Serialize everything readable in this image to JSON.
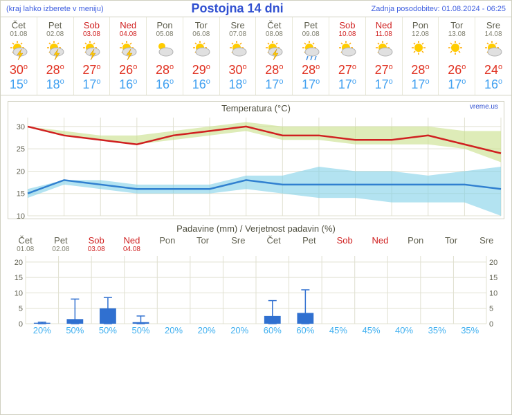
{
  "header": {
    "left": "(kraj lahko izberete v meniju)",
    "title": "Postojna 14 dni",
    "right": "Zadnja posodobitev: 01.08.2024 - 06:25"
  },
  "brand": "vreme.us",
  "days": [
    {
      "name": "Čet",
      "date": "01.08",
      "weekend": false,
      "icon": "storm",
      "high": 30,
      "low": 15
    },
    {
      "name": "Pet",
      "date": "02.08",
      "weekend": false,
      "icon": "storm",
      "high": 28,
      "low": 18
    },
    {
      "name": "Sob",
      "date": "03.08",
      "weekend": true,
      "icon": "storm",
      "high": 27,
      "low": 17
    },
    {
      "name": "Ned",
      "date": "04.08",
      "weekend": true,
      "icon": "storm",
      "high": 26,
      "low": 16
    },
    {
      "name": "Pon",
      "date": "05.08",
      "weekend": false,
      "icon": "cloudy",
      "high": 28,
      "low": 16
    },
    {
      "name": "Tor",
      "date": "06.08",
      "weekend": false,
      "icon": "partly",
      "high": 29,
      "low": 16
    },
    {
      "name": "Sre",
      "date": "07.08",
      "weekend": false,
      "icon": "partly",
      "high": 30,
      "low": 18
    },
    {
      "name": "Čet",
      "date": "08.08",
      "weekend": false,
      "icon": "storm",
      "high": 28,
      "low": 17
    },
    {
      "name": "Pet",
      "date": "09.08",
      "weekend": false,
      "icon": "rain",
      "high": 28,
      "low": 17
    },
    {
      "name": "Sob",
      "date": "10.08",
      "weekend": true,
      "icon": "partly",
      "high": 27,
      "low": 17
    },
    {
      "name": "Ned",
      "date": "11.08",
      "weekend": true,
      "icon": "partly",
      "high": 27,
      "low": 17
    },
    {
      "name": "Pon",
      "date": "12.08",
      "weekend": false,
      "icon": "sunny",
      "high": 28,
      "low": 17
    },
    {
      "name": "Tor",
      "date": "13.08",
      "weekend": false,
      "icon": "sunny",
      "high": 26,
      "low": 17
    },
    {
      "name": "Sre",
      "date": "14.08",
      "weekend": false,
      "icon": "partly",
      "high": 24,
      "low": 16
    }
  ],
  "temp_chart": {
    "title": "Temperatura (°C)",
    "ylim": [
      10,
      32
    ],
    "yticks": [
      10,
      15,
      20,
      25,
      30
    ],
    "grid_color": "#e0e0d0",
    "high_line_color": "#d02020",
    "high_band_color": "#c8e088",
    "low_line_color": "#3080d0",
    "low_band_color": "#80d0e8",
    "background": "#ffffff",
    "high_values": [
      30,
      28,
      27,
      26,
      28,
      29,
      30,
      28,
      28,
      27,
      27,
      28,
      26,
      24
    ],
    "high_upper": [
      30,
      29,
      28,
      28,
      29,
      30,
      31,
      30,
      30,
      30,
      30,
      30,
      29,
      29
    ],
    "high_lower": [
      30,
      28,
      27,
      26,
      27,
      28,
      29,
      27,
      27,
      26,
      26,
      26,
      25,
      22
    ],
    "low_values": [
      15,
      18,
      17,
      16,
      16,
      16,
      18,
      17,
      17,
      17,
      17,
      17,
      17,
      16
    ],
    "low_upper": [
      16,
      18,
      18,
      17,
      17,
      17,
      19,
      19,
      21,
      20,
      20,
      19,
      20,
      21
    ],
    "low_lower": [
      14,
      17,
      16,
      15,
      15,
      15,
      16,
      15,
      14,
      14,
      13,
      13,
      13,
      10
    ]
  },
  "precip_chart": {
    "title": "Padavine (mm) / Verjetnost padavin (%)",
    "ylim": [
      0,
      22
    ],
    "yticks": [
      0,
      5,
      10,
      15,
      20
    ],
    "grid_color": "#e0e0d0",
    "bar_color": "#3070d0",
    "error_color": "#3070d0",
    "prob_color": "#40b0f0",
    "days": [
      {
        "name": "Čet",
        "date": "01.08",
        "weekend": false,
        "mm": 0.3,
        "err": 0.5,
        "prob": 20
      },
      {
        "name": "Pet",
        "date": "02.08",
        "weekend": false,
        "mm": 1.5,
        "err": 8,
        "prob": 50
      },
      {
        "name": "Sob",
        "date": "03.08",
        "weekend": true,
        "mm": 5,
        "err": 8.5,
        "prob": 50
      },
      {
        "name": "Ned",
        "date": "04.08",
        "weekend": true,
        "mm": 0.5,
        "err": 2.5,
        "prob": 50
      },
      {
        "name": "Pon",
        "date": "",
        "weekend": false,
        "mm": 0,
        "err": 0,
        "prob": 20
      },
      {
        "name": "Tor",
        "date": "",
        "weekend": false,
        "mm": 0,
        "err": 0,
        "prob": 20
      },
      {
        "name": "Sre",
        "date": "",
        "weekend": false,
        "mm": 0,
        "err": 0,
        "prob": 20
      },
      {
        "name": "Čet",
        "date": "",
        "weekend": false,
        "mm": 2.5,
        "err": 7.5,
        "prob": 60
      },
      {
        "name": "Pet",
        "date": "",
        "weekend": false,
        "mm": 3.5,
        "err": 11,
        "prob": 60
      },
      {
        "name": "Sob",
        "date": "",
        "weekend": true,
        "mm": 0,
        "err": 0,
        "prob": 45
      },
      {
        "name": "Ned",
        "date": "",
        "weekend": true,
        "mm": 0,
        "err": 0,
        "prob": 45
      },
      {
        "name": "Pon",
        "date": "",
        "weekend": false,
        "mm": 0,
        "err": 0,
        "prob": 40
      },
      {
        "name": "Tor",
        "date": "",
        "weekend": false,
        "mm": 0,
        "err": 0,
        "prob": 35
      },
      {
        "name": "Sre",
        "date": "",
        "weekend": false,
        "mm": 0,
        "err": 0,
        "prob": 35
      }
    ]
  }
}
